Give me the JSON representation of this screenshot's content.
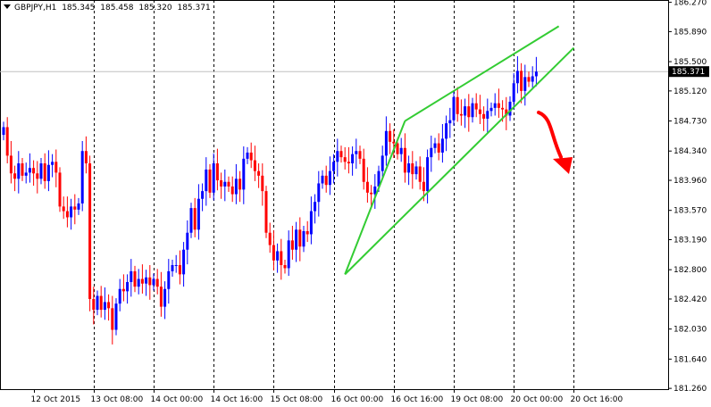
{
  "header": {
    "symbol": "GBPJPY,H1",
    "open": "185.345",
    "high": "185.458",
    "low": "185.320",
    "close": "185.371"
  },
  "current_price_label": "185.371",
  "colors": {
    "background": "#ffffff",
    "grid": "#000000",
    "bull": "#0000ff",
    "bear": "#ff0000",
    "trendline": "#33cc33",
    "arrow": "#ff0000",
    "price_line": "#c0c0c0"
  },
  "chart_data": {
    "type": "candlestick",
    "symbol": "GBPJPY",
    "timeframe": "H1",
    "ylim": [
      181.25,
      186.3
    ],
    "y_ticks": [
      "186.270",
      "185.890",
      "185.500",
      "185.120",
      "184.730",
      "184.340",
      "183.960",
      "183.570",
      "183.190",
      "182.800",
      "182.420",
      "182.030",
      "181.640",
      "181.260"
    ],
    "x_labels": [
      "12 Oct 2015",
      "13 Oct 08:00",
      "14 Oct 00:00",
      "14 Oct 16:00",
      "15 Oct 08:00",
      "16 Oct 00:00",
      "16 Oct 16:00",
      "19 Oct 08:00",
      "20 Oct 00:00",
      "20 Oct 16:00"
    ],
    "grid": "vertical dotted",
    "current_price": 185.371,
    "closes": [
      184.65,
      184.28,
      184.05,
      183.98,
      184.18,
      184.02,
      184.06,
      184.12,
      184.05,
      183.98,
      184.18,
      183.95,
      184.16,
      184.2,
      184.06,
      183.62,
      183.56,
      183.48,
      183.62,
      183.58,
      183.66,
      184.34,
      184.18,
      182.42,
      182.28,
      182.46,
      182.28,
      182.38,
      182.3,
      182.02,
      182.36,
      182.55,
      182.52,
      182.64,
      182.78,
      182.58,
      182.68,
      182.62,
      182.7,
      182.6,
      182.68,
      182.58,
      182.32,
      182.55,
      182.78,
      182.86,
      182.86,
      182.74,
      183.06,
      183.28,
      183.6,
      183.32,
      183.72,
      183.82,
      184.1,
      183.8,
      184.18,
      183.96,
      183.88,
      183.94,
      183.88,
      183.78,
      183.98,
      183.84,
      184.24,
      184.32,
      184.22,
      184.08,
      184.02,
      183.82,
      183.28,
      183.12,
      182.92,
      183.04,
      182.86,
      182.82,
      183.18,
      183.06,
      183.32,
      183.1,
      183.3,
      183.26,
      183.56,
      183.68,
      183.92,
      184.02,
      183.9,
      184.08,
      184.2,
      184.34,
      184.26,
      184.2,
      184.18,
      184.3,
      184.34,
      184.24,
      183.94,
      183.8,
      183.78,
      183.88,
      184.08,
      184.28,
      184.6,
      184.46,
      184.44,
      184.3,
      184.38,
      184.06,
      184.18,
      184.04,
      184.14,
      183.94,
      183.82,
      184.26,
      184.38,
      184.44,
      184.32,
      184.5,
      184.7,
      184.74,
      185.04,
      184.82,
      184.8,
      184.92,
      184.78,
      184.96,
      184.88,
      184.82,
      184.76,
      184.86,
      184.9,
      184.96,
      184.9,
      184.88,
      184.8,
      184.98,
      185.22,
      185.38,
      185.12,
      185.3,
      185.24,
      185.31,
      185.371
    ]
  },
  "trendlines": [
    {
      "from": {
        "bar": 91,
        "price": 182.74
      },
      "to": {
        "bar": 107,
        "price": 184.73
      }
    },
    {
      "from": {
        "bar": 107,
        "price": 184.73
      },
      "to": {
        "bar": 148,
        "price": 185.96
      }
    },
    {
      "from": {
        "bar": 91,
        "price": 182.74
      },
      "to": {
        "bar": 152,
        "price": 185.68
      }
    }
  ]
}
